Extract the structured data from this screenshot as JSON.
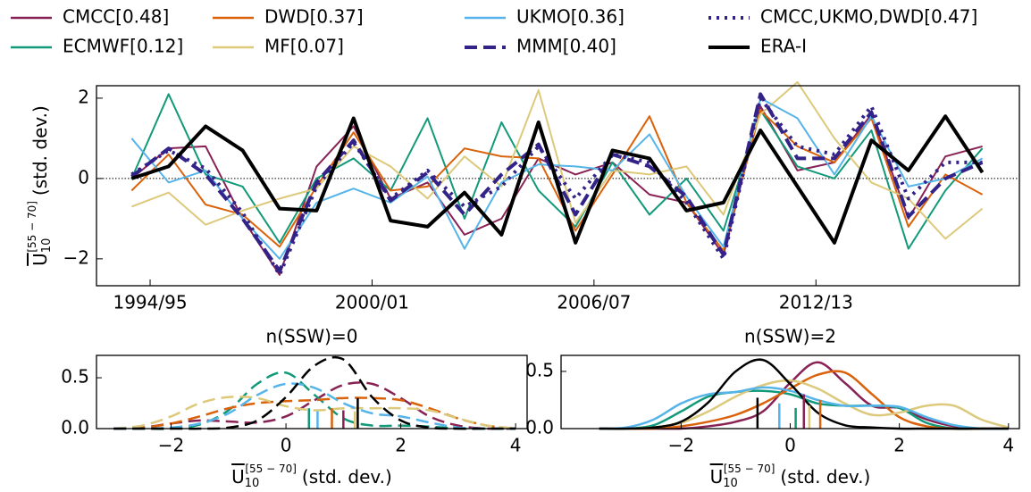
{
  "chart_data": [
    {
      "type": "line",
      "x": [
        1993,
        1994,
        1995,
        1996,
        1997,
        1998,
        1999,
        2000,
        2001,
        2002,
        2003,
        2004,
        2005,
        2006,
        2007,
        2008,
        2009,
        2010,
        2011,
        2012,
        2013,
        2014,
        2015,
        2016
      ],
      "xlim": [
        1992.05,
        2017.0
      ],
      "xticks": [
        {
          "value": 1993.5,
          "label": "1994/95"
        },
        {
          "value": 1999.5,
          "label": "2000/01"
        },
        {
          "value": 2005.5,
          "label": "2006/07"
        },
        {
          "value": 2011.5,
          "label": "2012/13"
        }
      ],
      "ylim": [
        -2.67,
        2.31
      ],
      "yticks": [
        {
          "value": -2,
          "label": "−2"
        },
        0,
        2
      ],
      "zero_line": true,
      "ylabel": {
        "symbol": "U",
        "sub": "10",
        "sup": "[55 − 70]",
        "text": "(std. dev.)"
      },
      "series": [
        {
          "name": "CMCC[0.48]",
          "color": "#882255",
          "dash": "solid",
          "values": [
            0.0,
            0.75,
            0.8,
            -1.0,
            -2.4,
            0.3,
            1.3,
            -0.5,
            -0.1,
            -1.4,
            -1.0,
            0.5,
            0.1,
            0.4,
            -0.4,
            -0.6,
            -1.9,
            1.8,
            0.2,
            0.4,
            1.6,
            -1.0,
            0.55,
            0.8
          ]
        },
        {
          "name": "ECMWF[0.12]",
          "color": "#11997a",
          "dash": "solid",
          "values": [
            0.0,
            2.1,
            0.1,
            -0.2,
            -1.6,
            0.0,
            0.5,
            -0.3,
            1.5,
            -1.0,
            1.4,
            -0.3,
            -1.2,
            0.4,
            -0.9,
            0.0,
            -1.3,
            1.7,
            0.3,
            0.0,
            1.2,
            -1.75,
            -0.3,
            0.75
          ]
        },
        {
          "name": "DWD[0.37]",
          "color": "#d9620b",
          "dash": "solid",
          "values": [
            -0.3,
            0.6,
            -0.65,
            -0.9,
            -1.7,
            -0.2,
            1.15,
            -0.3,
            -0.2,
            0.75,
            0.55,
            0.5,
            -1.3,
            0.1,
            1.55,
            -0.6,
            -1.8,
            1.7,
            0.8,
            0.4,
            1.5,
            -1.2,
            0.1,
            -0.4
          ]
        },
        {
          "name": "MF[0.07]",
          "color": "#ddc97b",
          "dash": "solid",
          "values": [
            -0.7,
            -0.35,
            -1.15,
            -0.8,
            -0.5,
            -0.25,
            0.8,
            0.3,
            -0.5,
            0.55,
            -0.2,
            2.2,
            -1.1,
            0.2,
            0.1,
            0.3,
            -0.9,
            1.6,
            2.4,
            1.0,
            -0.1,
            -0.5,
            -1.5,
            -0.75
          ]
        },
        {
          "name": "UKMO[0.36]",
          "color": "#56b4e9",
          "dash": "solid",
          "values": [
            1.0,
            -0.1,
            0.2,
            -1.0,
            -2.0,
            -0.6,
            -0.25,
            -0.6,
            0.05,
            -1.75,
            -0.1,
            0.35,
            0.3,
            0.2,
            1.1,
            -0.45,
            -1.7,
            2.0,
            1.5,
            0.1,
            1.55,
            -0.2,
            0.0,
            0.5
          ]
        },
        {
          "name": "MMM[0.40]",
          "color": "#332288",
          "dash": "dashed",
          "values": [
            0.05,
            0.75,
            0.1,
            -1.0,
            -2.3,
            -0.1,
            0.95,
            -0.55,
            0.15,
            -0.9,
            0.1,
            0.85,
            -0.9,
            0.6,
            0.3,
            -0.45,
            -1.9,
            2.1,
            0.5,
            0.5,
            1.65,
            -0.95,
            0.0,
            0.4
          ]
        },
        {
          "name": "CMCC,UKMO,DWD[0.47]",
          "color": "#332288",
          "dash": "dotted",
          "values": [
            0.1,
            0.7,
            0.25,
            -0.85,
            -2.4,
            -0.2,
            0.9,
            -0.5,
            0.2,
            -0.7,
            -0.2,
            0.8,
            -0.5,
            0.6,
            0.4,
            -0.6,
            -2.0,
            2.0,
            0.8,
            0.6,
            1.8,
            -0.5,
            0.4,
            0.4
          ]
        },
        {
          "name": "ERA-I",
          "color": "#000000",
          "dash": "bold",
          "values": [
            0.0,
            0.3,
            1.3,
            0.7,
            -0.75,
            -0.8,
            1.5,
            -1.05,
            -1.2,
            -0.35,
            -1.4,
            1.4,
            -1.6,
            0.7,
            0.5,
            -0.8,
            -0.6,
            1.2,
            -0.2,
            -1.6,
            0.95,
            0.2,
            1.55,
            0.15
          ]
        }
      ]
    },
    {
      "type": "density",
      "title": "n(SSW)=0",
      "dash": "dashed",
      "x": [
        -3,
        -2.5,
        -2,
        -1.5,
        -1,
        -0.5,
        0,
        0.5,
        1,
        1.5,
        2,
        2.5,
        3,
        3.5,
        4
      ],
      "xlim": [
        -3.3,
        4.2
      ],
      "xticks": [
        {
          "value": -2,
          "label": "−2"
        },
        0,
        2,
        4
      ],
      "ylim": [
        0,
        0.72
      ],
      "yticks": [
        {
          "value": 0,
          "label": "0.0"
        },
        {
          "value": 0.5,
          "label": "0.5"
        }
      ],
      "xlabel": {
        "symbol": "U",
        "sub": "10",
        "sup": "[55 − 70]",
        "text": "(std. dev.)"
      },
      "series": [
        {
          "color": "#882255",
          "values": [
            0,
            0.01,
            0.05,
            0.08,
            0.07,
            0.06,
            0.12,
            0.28,
            0.43,
            0.44,
            0.3,
            0.12,
            0.03,
            0,
            0
          ],
          "mean": 1.0,
          "mean_height": 0.18
        },
        {
          "color": "#11997a",
          "values": [
            0,
            0,
            0,
            0.04,
            0.18,
            0.44,
            0.55,
            0.33,
            0.1,
            0.03,
            0.03,
            0.02,
            0,
            0,
            0
          ],
          "mean": 0.4,
          "mean_height": 0.2
        },
        {
          "color": "#d9620b",
          "values": [
            0,
            0.01,
            0.05,
            0.12,
            0.2,
            0.25,
            0.27,
            0.28,
            0.3,
            0.3,
            0.28,
            0.2,
            0.1,
            0.03,
            0
          ],
          "mean": 0.8,
          "mean_height": 0.2
        },
        {
          "color": "#ddc97b",
          "values": [
            0,
            0.03,
            0.12,
            0.25,
            0.31,
            0.3,
            0.22,
            0.18,
            0.2,
            0.2,
            0.2,
            0.18,
            0.1,
            0.03,
            0
          ],
          "mean": 1.2,
          "mean_height": 0.17
        },
        {
          "color": "#56b4e9",
          "values": [
            0,
            0,
            0.01,
            0.05,
            0.15,
            0.33,
            0.44,
            0.4,
            0.25,
            0.15,
            0.12,
            0.06,
            0.01,
            0,
            0
          ],
          "mean": 0.55,
          "mean_height": 0.17
        },
        {
          "color": "#000000",
          "values": [
            0,
            0,
            0,
            0,
            0.01,
            0.08,
            0.31,
            0.62,
            0.68,
            0.31,
            0.08,
            0.01,
            0,
            0,
            0
          ],
          "mean": 1.25,
          "mean_height": 0.3
        }
      ]
    },
    {
      "type": "density",
      "title": "n(SSW)=2",
      "dash": "solid",
      "x": [
        -3.5,
        -3,
        -2.5,
        -2,
        -1.5,
        -1,
        -0.5,
        0,
        0.5,
        1,
        1.5,
        2,
        2.5,
        3,
        3.5,
        4
      ],
      "xlim": [
        -4.2,
        4.2
      ],
      "xticks": [
        {
          "value": -2,
          "label": "−2"
        },
        0,
        2,
        4
      ],
      "ylim": [
        0,
        0.64
      ],
      "yticks": [
        {
          "value": 0,
          "label": "0.0"
        },
        {
          "value": 0.5,
          "label": "0.5"
        }
      ],
      "xlabel": {
        "symbol": "U",
        "sub": "10",
        "sup": "[55 − 70]",
        "text": "(std. dev.)"
      },
      "series": [
        {
          "color": "#882255",
          "values": [
            0,
            0,
            0,
            0,
            0.02,
            0.06,
            0.15,
            0.4,
            0.58,
            0.4,
            0.2,
            0.18,
            0.08,
            0.02,
            0,
            0
          ],
          "mean": 0.25,
          "mean_height": 0.3
        },
        {
          "color": "#11997a",
          "values": [
            0,
            0,
            0.03,
            0.15,
            0.28,
            0.32,
            0.33,
            0.3,
            0.22,
            0.2,
            0.2,
            0.18,
            0.05,
            0,
            0,
            0
          ],
          "mean": 0.1,
          "mean_height": 0.18
        },
        {
          "color": "#d9620b",
          "values": [
            0,
            0,
            0,
            0.02,
            0.06,
            0.12,
            0.22,
            0.35,
            0.47,
            0.49,
            0.3,
            0.1,
            0.02,
            0,
            0,
            0
          ],
          "mean": 0.55,
          "mean_height": 0.25
        },
        {
          "color": "#ddc97b",
          "values": [
            0,
            0,
            0.01,
            0.05,
            0.15,
            0.28,
            0.38,
            0.42,
            0.35,
            0.22,
            0.12,
            0.14,
            0.2,
            0.2,
            0.08,
            0.01
          ],
          "mean": 0.35,
          "mean_height": 0.2
        },
        {
          "color": "#56b4e9",
          "values": [
            0,
            0.01,
            0.08,
            0.22,
            0.3,
            0.32,
            0.36,
            0.33,
            0.25,
            0.2,
            0.2,
            0.19,
            0.1,
            0.03,
            0,
            0
          ],
          "mean": -0.2,
          "mean_height": 0.22
        },
        {
          "color": "#000000",
          "values": [
            0,
            0,
            0.01,
            0.06,
            0.23,
            0.5,
            0.6,
            0.39,
            0.14,
            0.03,
            0.01,
            0,
            0,
            0,
            0,
            0
          ],
          "mean": -0.6,
          "mean_height": 0.27
        }
      ]
    }
  ]
}
